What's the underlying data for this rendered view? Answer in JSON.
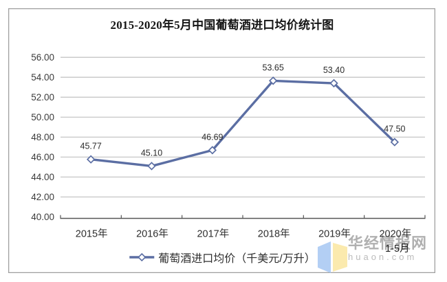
{
  "chart_data": {
    "type": "line",
    "title": "2015-2020年5月中国葡萄酒进口均价统计图",
    "categories": [
      "2015年",
      "2016年",
      "2017年",
      "2018年",
      "2019年",
      "2020年"
    ],
    "last_category_sub": "1-5月",
    "series": [
      {
        "name": "葡萄酒进口均价（千美元/万升）",
        "values": [
          45.77,
          45.1,
          46.69,
          53.65,
          53.4,
          47.5
        ],
        "labels": [
          "45.77",
          "45.10",
          "46.69",
          "53.65",
          "53.40",
          "47.50"
        ]
      }
    ],
    "y_ticks": [
      "56.00",
      "54.00",
      "52.00",
      "50.00",
      "48.00",
      "46.00",
      "44.00",
      "42.00",
      "40.00"
    ],
    "ylim": [
      40,
      56
    ],
    "xlabel": "",
    "ylabel": "",
    "grid": true,
    "legend_position": "bottom",
    "line_color": "#5B6EA3",
    "marker": "diamond",
    "marker_fill": "#ffffff",
    "gridline_color": "#c6c6c6",
    "axis_color": "#555555"
  },
  "watermark": {
    "name": "华经情报网",
    "domain": "huaon.com",
    "icon": "open-book-icon",
    "icon_colors": {
      "left_page": "#A9C9F3",
      "right_page": "#FBE8A3"
    }
  }
}
